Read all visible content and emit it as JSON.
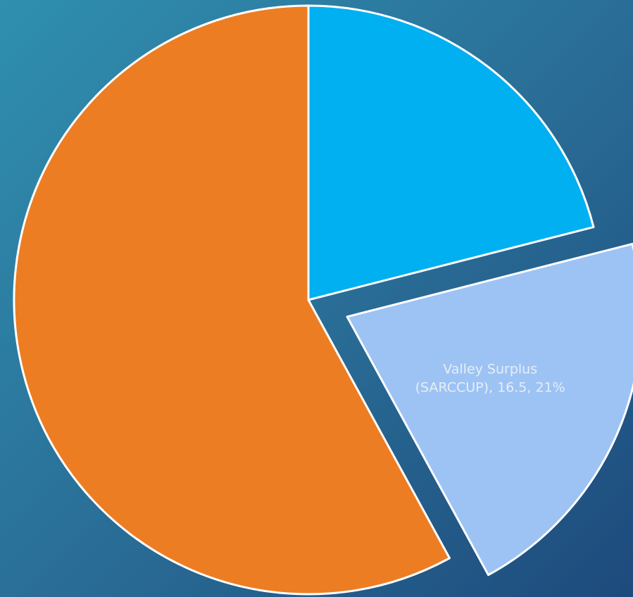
{
  "chart_data": {
    "type": "pie",
    "categories": [
      null,
      "Valley Surplus (SARCCUP)",
      null
    ],
    "values": [
      16.5,
      16.5,
      45.5
    ],
    "percent_labels": [
      null,
      "21%",
      null
    ],
    "label_separator": ", ",
    "colors": [
      "#00b0f0",
      "#9dc3f4",
      "#ed7d22"
    ],
    "exploded": [
      false,
      true,
      false
    ]
  }
}
